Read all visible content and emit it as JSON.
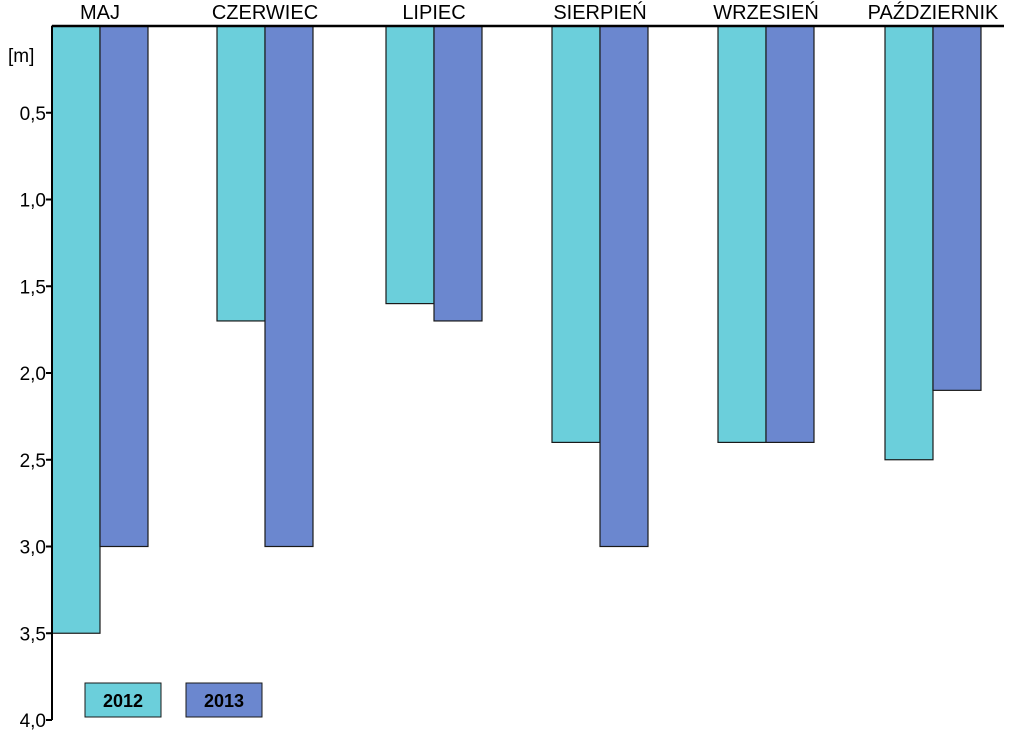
{
  "chart_data": {
    "type": "bar",
    "title": "",
    "xlabel": "",
    "ylabel": "[m]",
    "orientation": "inverted-vertical",
    "categories": [
      "MAJ",
      "CZERWIEC",
      "LIPIEC",
      "SIERPIEŃ",
      "WRZESIEŃ",
      "PAŹDZIERNIK"
    ],
    "series": [
      {
        "name": "2012",
        "color": "#6bcfdb",
        "values": [
          3.5,
          1.7,
          1.6,
          2.4,
          2.4,
          2.5
        ]
      },
      {
        "name": "2013",
        "color": "#6b87cf",
        "values": [
          3.0,
          3.0,
          1.7,
          3.0,
          2.4,
          2.1
        ]
      }
    ],
    "ylim": [
      0,
      4.0
    ],
    "yticks": [
      "0,5",
      "1,0",
      "1,5",
      "2,0",
      "2,5",
      "3,0",
      "3,5",
      "4,0"
    ],
    "ytick_values": [
      0.5,
      1.0,
      1.5,
      2.0,
      2.5,
      3.0,
      3.5,
      4.0
    ],
    "legend": {
      "position": "bottom-left",
      "entries": [
        "2012",
        "2013"
      ]
    },
    "grid": false
  }
}
